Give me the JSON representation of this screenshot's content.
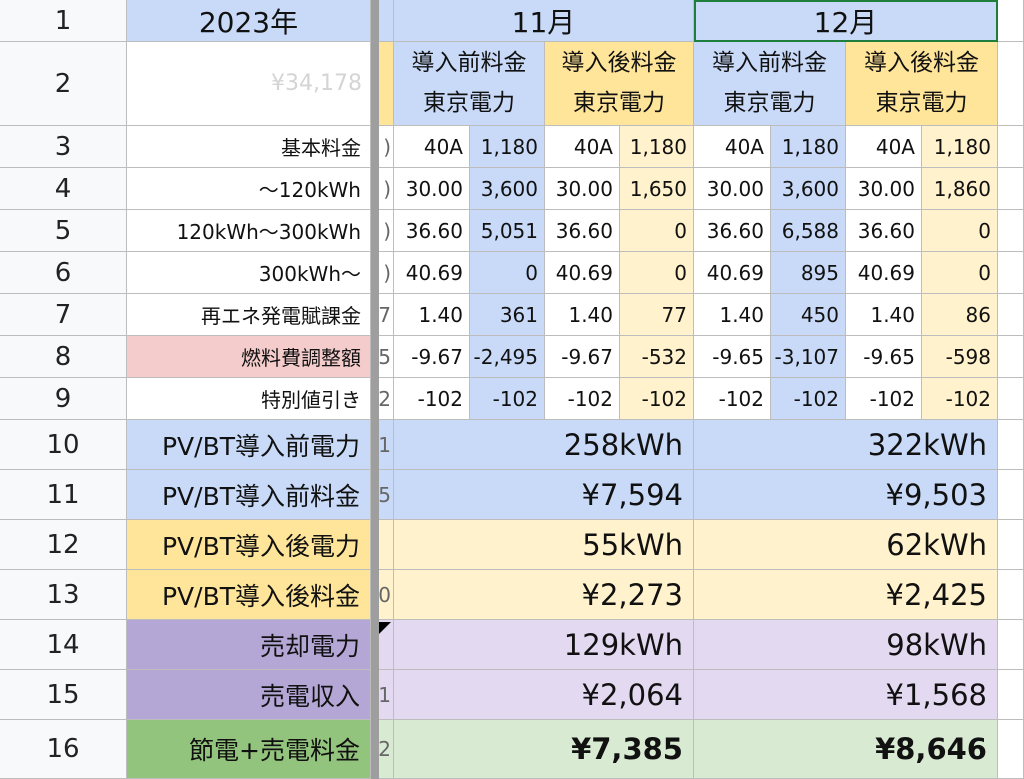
{
  "sheet": {
    "row_numbers": [
      "1",
      "2",
      "3",
      "4",
      "5",
      "6",
      "7",
      "8",
      "9",
      "10",
      "11",
      "12",
      "13",
      "14",
      "15",
      "16"
    ],
    "year_label": "2023年",
    "ghost_value": "¥34,178",
    "months": [
      "11月",
      "12月"
    ],
    "col_headers": {
      "before_line1": "導入前料金",
      "after_line1": "導入後料金",
      "line2": "東京電力"
    },
    "labels": {
      "r3": "基本料金",
      "r4": "～120kWh",
      "r5": "120kWh～300kWh",
      "r6": "300kWh～",
      "r7": "再エネ発電賦課金",
      "r8": "燃料費調整額",
      "r9": "特別値引き",
      "r10": "PV/BT導入前電力",
      "r11": "PV/BT導入前料金",
      "r12": "PV/BT導入後電力",
      "r13": "PV/BT導入後料金",
      "r14": "売却電力",
      "r15": "売電収入",
      "r16": "節電+売電料金"
    },
    "clipped": [
      "",
      ")",
      ")",
      ")",
      ")",
      "7",
      "5",
      "2",
      "1",
      "5",
      "",
      "0",
      "",
      "1",
      "2"
    ],
    "detail_rows": [
      [
        "40A",
        "1,180",
        "40A",
        "1,180",
        "40A",
        "1,180",
        "40A",
        "1,180"
      ],
      [
        "30.00",
        "3,600",
        "30.00",
        "1,650",
        "30.00",
        "3,600",
        "30.00",
        "1,860"
      ],
      [
        "36.60",
        "5,051",
        "36.60",
        "0",
        "36.60",
        "6,588",
        "36.60",
        "0"
      ],
      [
        "40.69",
        "0",
        "40.69",
        "0",
        "40.69",
        "895",
        "40.69",
        "0"
      ],
      [
        "1.40",
        "361",
        "1.40",
        "77",
        "1.40",
        "450",
        "1.40",
        "86"
      ],
      [
        "-9.67",
        "-2,495",
        "-9.67",
        "-532",
        "-9.65",
        "-3,107",
        "-9.65",
        "-598"
      ],
      [
        "-102",
        "-102",
        "-102",
        "-102",
        "-102",
        "-102",
        "-102",
        "-102"
      ]
    ],
    "summary": {
      "nov": {
        "r10": "258kWh",
        "r11": "¥7,594",
        "r12": "55kWh",
        "r13": "¥2,273",
        "r14": "129kWh",
        "r15": "¥2,064",
        "r16": "¥7,385"
      },
      "dec": {
        "r10": "322kWh",
        "r11": "¥9,503",
        "r12": "62kWh",
        "r13": "¥2,425",
        "r14": "98kWh",
        "r15": "¥1,568",
        "r16": "¥8,646"
      }
    }
  }
}
